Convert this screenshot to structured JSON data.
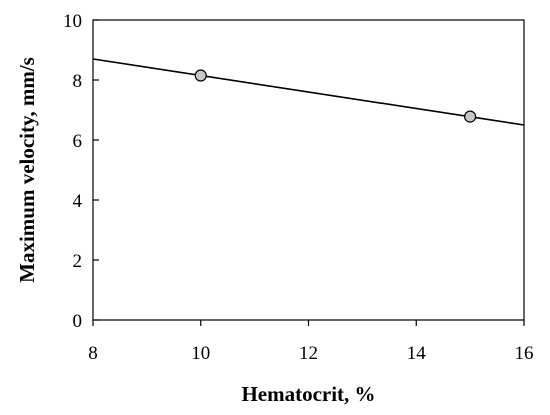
{
  "chart_data": {
    "type": "scatter",
    "title": "",
    "xlabel": "Hematocrit, %",
    "ylabel": "Maximum velocity, mm/s",
    "xlim": [
      8,
      16
    ],
    "ylim": [
      0,
      10
    ],
    "xticks": [
      "8",
      "10",
      "12",
      "14",
      "16"
    ],
    "yticks": [
      "0",
      "2",
      "4",
      "6",
      "8",
      "10"
    ],
    "grid": false,
    "points": [
      {
        "x": 10,
        "y": 8.15
      },
      {
        "x": 15,
        "y": 6.78
      }
    ],
    "trendline": {
      "x": [
        8,
        16
      ],
      "y": [
        8.7,
        6.5
      ]
    },
    "colors": {
      "marker_fill": "#c8c8c8",
      "line": "#000000"
    }
  }
}
